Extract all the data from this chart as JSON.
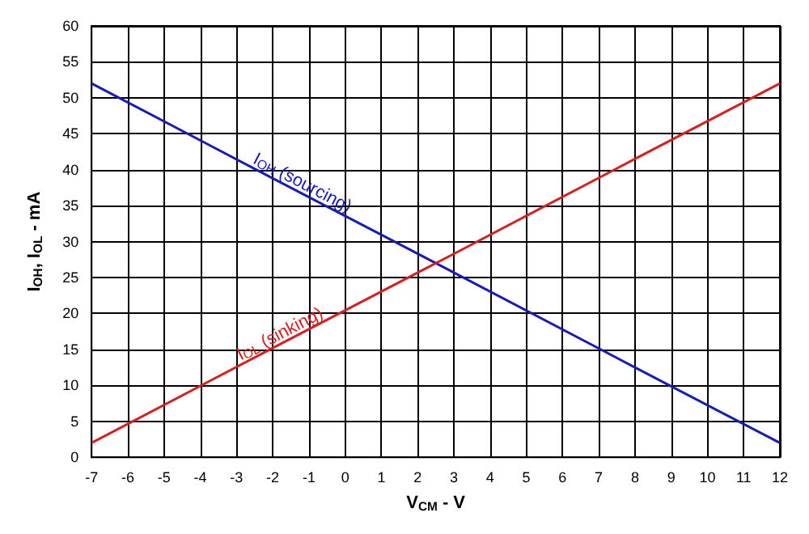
{
  "chart_data": {
    "type": "line",
    "xlabel": "V$_{CM}$ - V",
    "ylabel": "I$_{OH}$, I$_{OL}$ - mA",
    "xlim": [
      -7,
      12
    ],
    "xticks": [
      -7,
      -6,
      -5,
      -4,
      -3,
      -2,
      -1,
      0,
      1,
      2,
      3,
      4,
      5,
      6,
      7,
      8,
      9,
      10,
      11,
      12
    ],
    "ylim": [
      0,
      60
    ],
    "yticks": [
      0,
      5,
      10,
      15,
      20,
      25,
      30,
      35,
      40,
      45,
      50,
      55,
      60
    ],
    "grid": true,
    "legend": false,
    "marker": "none",
    "line_style": "solid",
    "series": [
      {
        "name": "I$_{OH}$ (sourcing)",
        "color": "#1a1ab4",
        "x": [
          -7,
          -2,
          3,
          8,
          12
        ],
        "values": [
          52,
          38.8,
          25.7,
          12.5,
          2
        ]
      },
      {
        "name": "I$_{OL}$ (sinking)",
        "color": "#d42020",
        "x": [
          -7,
          -2,
          3,
          8,
          12
        ],
        "values": [
          2,
          15.2,
          28.3,
          41.5,
          52
        ]
      }
    ]
  }
}
